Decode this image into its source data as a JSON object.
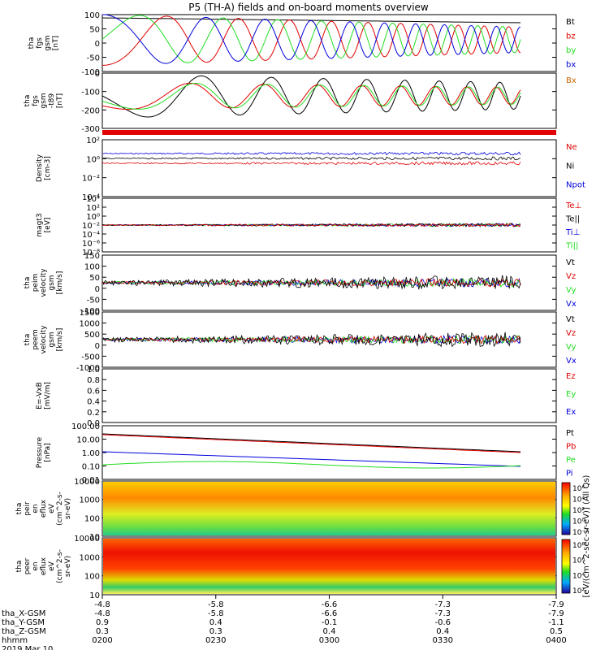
{
  "title": "P5 (TH-A) fields and on-board moments overview",
  "colors": {
    "black": "#000000",
    "red": "#e00000",
    "green": "#22dd22",
    "blue": "#0000dd"
  },
  "chart_data": [
    {
      "id": "p1",
      "type": "line",
      "ylabel": [
        "tha",
        "fgs",
        "gsm",
        "[nT]"
      ],
      "yticks": [
        "100",
        "50",
        "0",
        "-50",
        "-100"
      ],
      "legend": [
        "Bt",
        "bz",
        "by",
        "bx"
      ]
    },
    {
      "id": "p2",
      "type": "line",
      "ylabel": [
        "tha",
        "fgs",
        "gsm",
        "-t89",
        "[nT]"
      ],
      "yticks": [
        "0",
        "-100",
        "-200",
        "-300"
      ],
      "legend": [
        "Bx"
      ]
    },
    {
      "id": "p3",
      "type": "bar",
      "note": "red status bar"
    },
    {
      "id": "p4",
      "type": "line",
      "ylabel": [
        "Density",
        "[cm-3]"
      ],
      "yticks": [
        "10²",
        "10⁰",
        "10⁻²",
        "10⁻⁴"
      ],
      "legend": [
        "Ne",
        "Ni",
        "Npot"
      ]
    },
    {
      "id": "p5",
      "type": "line",
      "ylabel": [
        "magt3",
        "[eV]"
      ],
      "yticks": [
        "10⁴",
        "10²",
        "10⁰",
        "10⁻²",
        "10⁻⁴",
        "10⁻⁶",
        "10⁻⁸"
      ],
      "legend": [
        "Te⊥",
        "Te||",
        "Ti⊥",
        "Ti||"
      ]
    },
    {
      "id": "p6",
      "type": "line",
      "ylabel": [
        "tha",
        "peim",
        "velocity",
        "gsm",
        "[km/s]"
      ],
      "yticks": [
        "150",
        "100",
        "50",
        "0",
        "-50",
        "-100"
      ],
      "legend": [
        "Vt",
        "Vz",
        "Vy",
        "Vx"
      ]
    },
    {
      "id": "p7",
      "type": "line",
      "ylabel": [
        "tha",
        "peem",
        "velocity",
        "gsm",
        "[km/s]"
      ],
      "yticks": [
        "1500",
        "1000",
        "500",
        "0",
        "-500",
        "-1000"
      ],
      "legend": [
        "Vt",
        "Vz",
        "Vy",
        "Vx"
      ]
    },
    {
      "id": "p8",
      "type": "line",
      "ylabel": [
        "E=-VxB",
        "[mV/m]"
      ],
      "yticks": [
        "1.0",
        "0.8",
        "0.6",
        "0.4",
        "0.2",
        "0.0"
      ],
      "legend": [
        "Ez",
        "Ey",
        "Ex"
      ]
    },
    {
      "id": "p9",
      "type": "line",
      "ylabel": [
        "Pressure",
        "[nPa]"
      ],
      "yticks": [
        "100.00",
        "10.00",
        "1.00",
        "0.10",
        "0.01"
      ],
      "legend": [
        "Pt",
        "Pb",
        "Pe",
        "Pi"
      ]
    },
    {
      "id": "p10",
      "type": "heatmap",
      "ylabel": [
        "tha",
        "peir",
        "en",
        "eflux",
        "eV",
        "(cm^2-s-",
        "sr-eV)"
      ],
      "yticks": [
        "10000",
        "1000",
        "100",
        "10"
      ],
      "cbar_ticks": [
        "10⁶",
        "10⁴",
        "10²",
        "10⁰",
        "10⁻²"
      ]
    },
    {
      "id": "p11",
      "type": "heatmap",
      "ylabel": [
        "tha",
        "peer",
        "en",
        "eflux",
        "eV",
        "(cm^2-s-",
        "sr-eV)"
      ],
      "yticks": [
        "10000",
        "1000",
        "100",
        "10"
      ],
      "cbar_ticks": [
        "10⁸",
        "10⁶",
        "10⁴",
        "10²"
      ]
    }
  ],
  "colorbar_label": "[eV/(cm^2-sec-sr-eV)] (All Qs)",
  "xaxis": {
    "top_ticks": [
      "-4.8",
      "-5.8",
      "-6.6",
      "-7.3",
      "-7.9"
    ],
    "rows": [
      {
        "label": "tha_X-GSM",
        "values": [
          "-4.8",
          "-5.8",
          "-6.6",
          "-7.3",
          "-7.9"
        ]
      },
      {
        "label": "tha_Y-GSM",
        "values": [
          "0.9",
          "0.4",
          "-0.1",
          "-0.6",
          "-1.1"
        ]
      },
      {
        "label": "tha_Z-GSM",
        "values": [
          "0.3",
          "0.3",
          "0.4",
          "0.4",
          "0.5"
        ]
      },
      {
        "label": "hhmm",
        "values": [
          "0200",
          "0230",
          "0300",
          "0330",
          "0400"
        ]
      }
    ],
    "date": "2019 Mar 10"
  }
}
